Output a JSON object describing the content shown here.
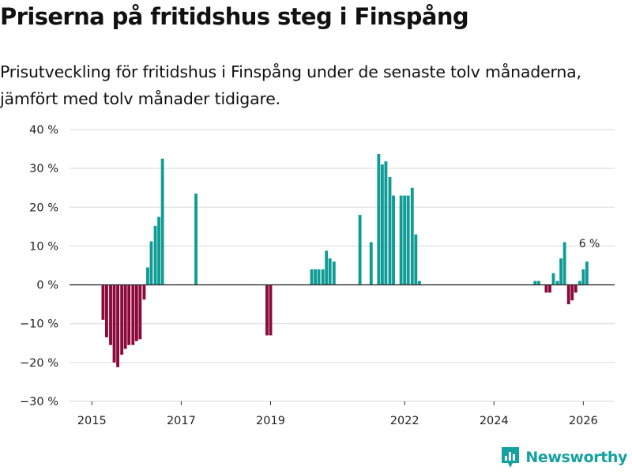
{
  "title": "Priserna på fritidshus steg i Finspång",
  "subtitle": "Prisutveckling för fritidshus i Finspång under de senaste tolv månaderna, jämfört med tolv månader tidigare.",
  "brand": {
    "name": "Newsworthy",
    "icon": "newsworthy-logo-icon"
  },
  "colors": {
    "positive": "#0f9c96",
    "negative": "#8c0a3a",
    "grid": "#d9d9d9",
    "zero": "#333333"
  },
  "chart_data": {
    "type": "bar",
    "title": "Priserna på fritidshus steg i Finspång",
    "xlabel": "",
    "ylabel": "",
    "xlim": [
      2014.5,
      2026.7
    ],
    "ylim": [
      -30,
      40
    ],
    "yticks": [
      40,
      30,
      20,
      10,
      0,
      -10,
      -20,
      -30
    ],
    "ytick_labels": [
      "40 %",
      "30 %",
      "20 %",
      "10 %",
      "0 %",
      "−10 %",
      "−20 %",
      "−30 %"
    ],
    "xticks": [
      2015,
      2017,
      2019,
      2022,
      2024,
      2026
    ],
    "xtick_labels": [
      "2015",
      "2017",
      "2019",
      "2022",
      "2024",
      "2026"
    ],
    "annotation": {
      "x": 2026.17,
      "y": 6,
      "label": "6 %"
    },
    "series": [
      {
        "name": "Prisutveckling",
        "points": [
          {
            "x": 2015.25,
            "y": -9
          },
          {
            "x": 2015.33,
            "y": -13.5
          },
          {
            "x": 2015.42,
            "y": -15.5
          },
          {
            "x": 2015.5,
            "y": -20
          },
          {
            "x": 2015.58,
            "y": -21.2
          },
          {
            "x": 2015.67,
            "y": -18
          },
          {
            "x": 2015.75,
            "y": -16.5
          },
          {
            "x": 2015.83,
            "y": -15.5
          },
          {
            "x": 2015.92,
            "y": -15.5
          },
          {
            "x": 2016.0,
            "y": -14.5
          },
          {
            "x": 2016.08,
            "y": -14
          },
          {
            "x": 2016.17,
            "y": -3.8
          },
          {
            "x": 2016.25,
            "y": 4.5
          },
          {
            "x": 2016.33,
            "y": 11.2
          },
          {
            "x": 2016.42,
            "y": 15.2
          },
          {
            "x": 2016.5,
            "y": 17.5
          },
          {
            "x": 2016.58,
            "y": 32.5
          },
          {
            "x": 2017.33,
            "y": 23.5
          },
          {
            "x": 2018.92,
            "y": -13
          },
          {
            "x": 2019.0,
            "y": -13
          },
          {
            "x": 2019.92,
            "y": 4
          },
          {
            "x": 2020.0,
            "y": 4
          },
          {
            "x": 2020.08,
            "y": 4
          },
          {
            "x": 2020.17,
            "y": 4
          },
          {
            "x": 2020.25,
            "y": 8.8
          },
          {
            "x": 2020.33,
            "y": 6.8
          },
          {
            "x": 2020.42,
            "y": 6
          },
          {
            "x": 2021.0,
            "y": 18
          },
          {
            "x": 2021.25,
            "y": 11
          },
          {
            "x": 2021.42,
            "y": 33.7
          },
          {
            "x": 2021.5,
            "y": 31
          },
          {
            "x": 2021.58,
            "y": 31.8
          },
          {
            "x": 2021.67,
            "y": 27.8
          },
          {
            "x": 2021.75,
            "y": 23
          },
          {
            "x": 2021.92,
            "y": 23
          },
          {
            "x": 2022.0,
            "y": 23
          },
          {
            "x": 2022.08,
            "y": 23
          },
          {
            "x": 2022.17,
            "y": 25
          },
          {
            "x": 2022.25,
            "y": 13
          },
          {
            "x": 2022.33,
            "y": 1
          },
          {
            "x": 2024.92,
            "y": 1
          },
          {
            "x": 2025.0,
            "y": 1
          },
          {
            "x": 2025.17,
            "y": -2
          },
          {
            "x": 2025.25,
            "y": -2
          },
          {
            "x": 2025.33,
            "y": 3
          },
          {
            "x": 2025.42,
            "y": 1
          },
          {
            "x": 2025.5,
            "y": 6.8
          },
          {
            "x": 2025.58,
            "y": 11
          },
          {
            "x": 2025.67,
            "y": -5
          },
          {
            "x": 2025.75,
            "y": -4
          },
          {
            "x": 2025.83,
            "y": -2
          },
          {
            "x": 2025.92,
            "y": 1
          },
          {
            "x": 2026.0,
            "y": 4
          },
          {
            "x": 2026.08,
            "y": 6
          }
        ]
      }
    ]
  }
}
